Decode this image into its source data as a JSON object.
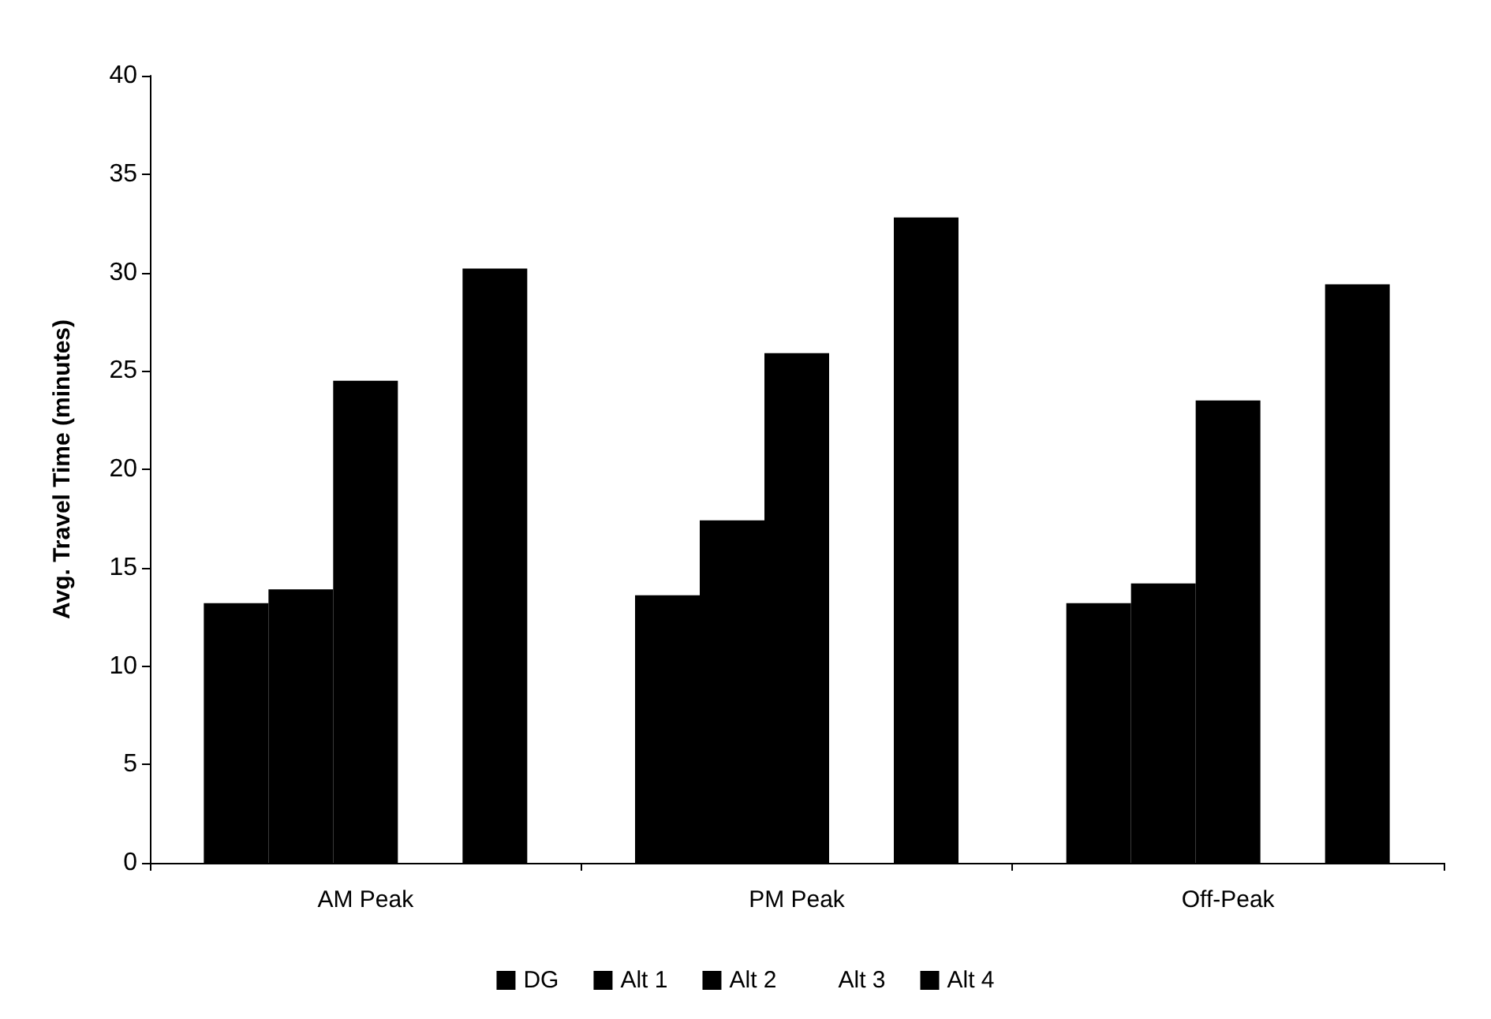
{
  "chart_data": {
    "type": "bar",
    "ylabel": "Avg. Travel Time (minutes)",
    "categories": [
      "AM Peak",
      "PM Peak",
      "Off-Peak"
    ],
    "series": [
      {
        "name": "DG",
        "color": "#000000",
        "values": [
          13.2,
          13.6,
          13.2
        ]
      },
      {
        "name": "Alt 1",
        "color": "#000000",
        "values": [
          13.9,
          17.4,
          14.2
        ]
      },
      {
        "name": "Alt 2",
        "color": "#000000",
        "values": [
          24.5,
          25.9,
          23.5
        ]
      },
      {
        "name": "Alt 3",
        "values": [
          null,
          null,
          null
        ]
      },
      {
        "name": "Alt 4",
        "color": "#000000",
        "values": [
          30.2,
          32.8,
          29.4
        ]
      }
    ],
    "ylim": [
      0,
      40
    ],
    "yticks": [
      0,
      5,
      10,
      15,
      20,
      25,
      30,
      35,
      40
    ],
    "grid": false,
    "legend": "bottom"
  }
}
